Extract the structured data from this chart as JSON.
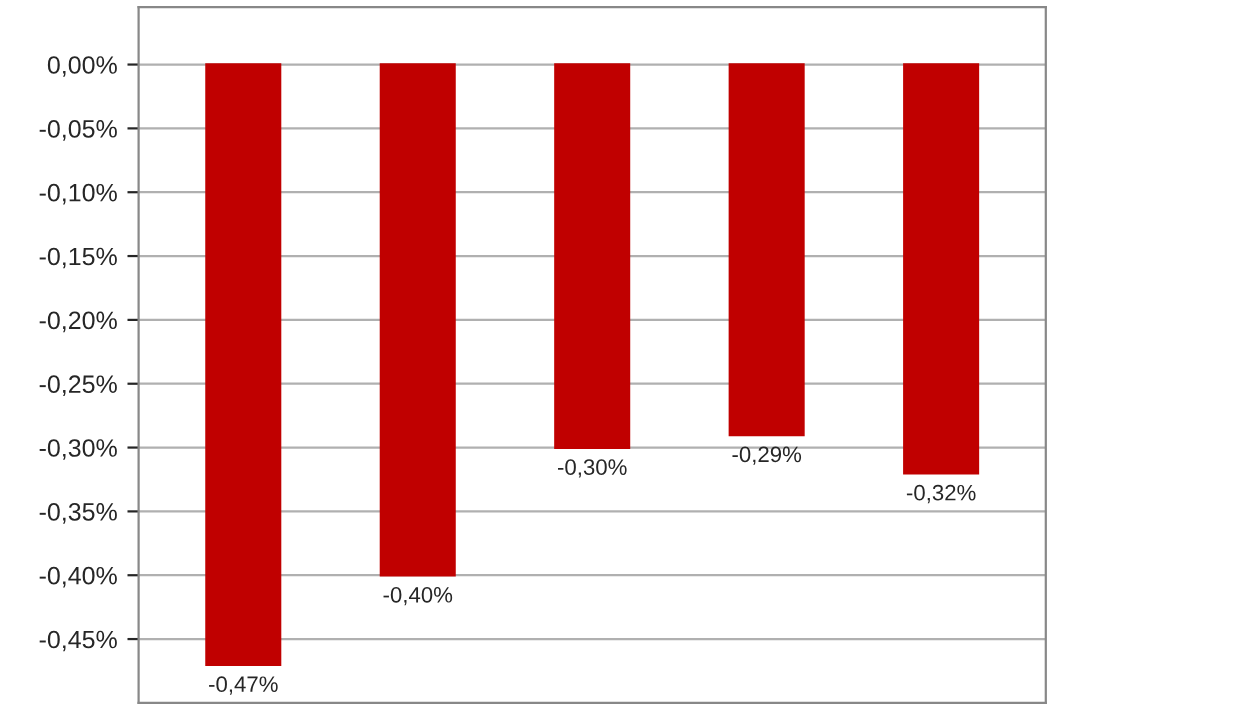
{
  "chart_data": {
    "type": "bar",
    "categories": [
      null,
      null,
      null,
      null,
      null
    ],
    "values": [
      -0.47,
      -0.4,
      -0.3,
      -0.29,
      -0.32
    ],
    "value_labels": [
      "-0,47%",
      "-0,40%",
      "-0,30%",
      "-0,29%",
      "-0,32%"
    ],
    "color": "#c00000",
    "ylim": [
      -0.5,
      0.045
    ],
    "yticks": [
      {
        "value": 0,
        "label": "0,00%"
      },
      {
        "value": -0.05,
        "label": "-0,05%"
      },
      {
        "value": -0.1,
        "label": "-0,10%"
      },
      {
        "value": -0.15,
        "label": "-0,15%"
      },
      {
        "value": -0.2,
        "label": "-0,20%"
      },
      {
        "value": -0.25,
        "label": "-0,25%"
      },
      {
        "value": -0.3,
        "label": "-0,30%"
      },
      {
        "value": -0.35,
        "label": "-0,35%"
      },
      {
        "value": -0.4,
        "label": "-0,40%"
      },
      {
        "value": -0.45,
        "label": "-0,45%"
      }
    ],
    "grid": "y"
  }
}
